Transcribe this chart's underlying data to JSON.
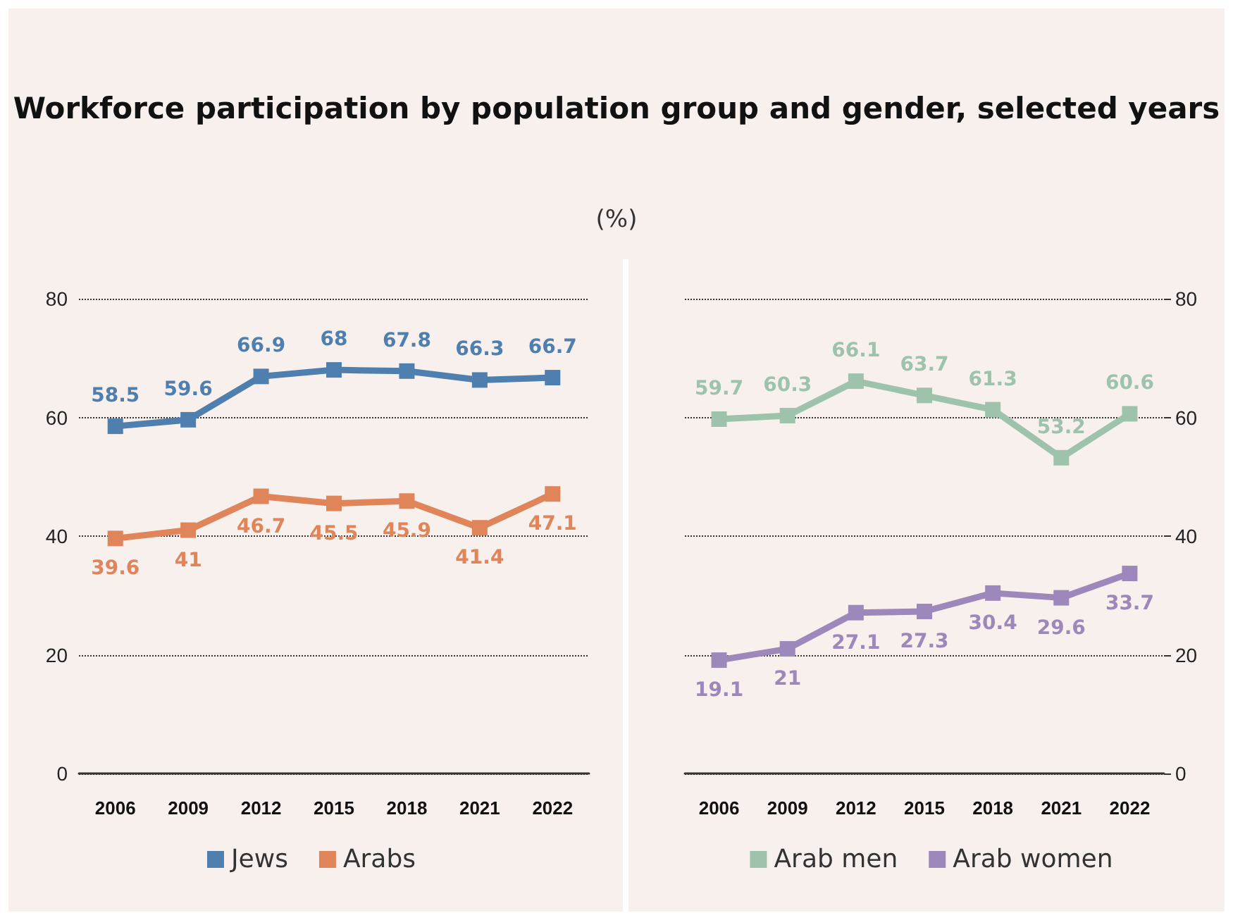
{
  "chart_data": [
    {
      "type": "line",
      "title": "Workforce participation by population group and gender, selected years",
      "subtitle": "(%)",
      "categories": [
        "2006",
        "2009",
        "2012",
        "2015",
        "2018",
        "2021",
        "2022"
      ],
      "series": [
        {
          "name": "Jews",
          "color": "#4e7fae",
          "values": [
            58.5,
            59.6,
            66.9,
            68,
            67.8,
            66.3,
            66.7
          ]
        },
        {
          "name": "Arabs",
          "color": "#e0845a",
          "values": [
            39.6,
            41,
            46.7,
            45.5,
            45.9,
            41.4,
            47.1
          ]
        }
      ],
      "ylim": [
        0,
        80
      ],
      "yticks": [
        0,
        20,
        40,
        60,
        80
      ],
      "grid": "y",
      "legend": "bottom",
      "marker": "square",
      "data_labels": true
    },
    {
      "type": "line",
      "categories": [
        "2006",
        "2009",
        "2012",
        "2015",
        "2018",
        "2021",
        "2022"
      ],
      "series": [
        {
          "name": "Arab men",
          "color": "#9dc3ad",
          "values": [
            59.7,
            60.3,
            66.1,
            63.7,
            61.3,
            53.2,
            60.6
          ]
        },
        {
          "name": "Arab women",
          "color": "#9c88bb",
          "values": [
            19.1,
            21,
            27.1,
            27.3,
            30.4,
            29.6,
            33.7
          ]
        }
      ],
      "y2lim": [
        0,
        80
      ],
      "y2ticks": [
        0,
        20,
        40,
        60,
        80
      ],
      "grid": "y",
      "legend": "bottom",
      "marker": "square",
      "data_labels": true
    }
  ]
}
